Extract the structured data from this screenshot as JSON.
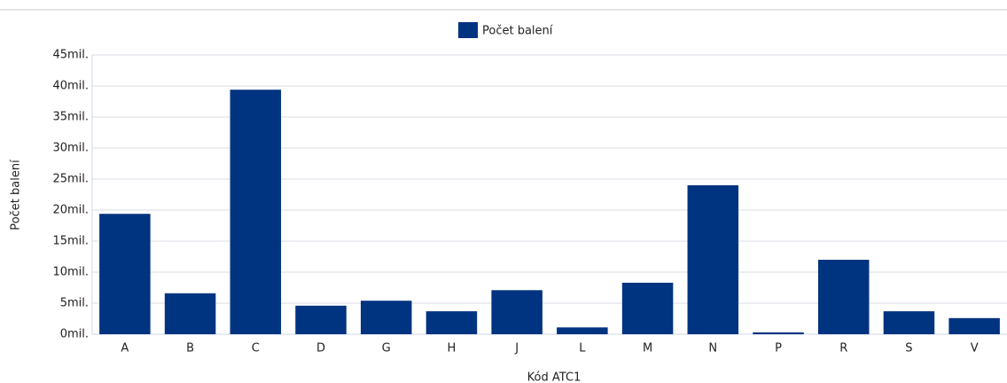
{
  "chart_data": {
    "type": "bar",
    "x_label": "Kód ATC1",
    "y_label": "Počet balení",
    "categories": [
      "A",
      "B",
      "C",
      "D",
      "G",
      "H",
      "J",
      "L",
      "M",
      "N",
      "P",
      "R",
      "S",
      "V"
    ],
    "series": [
      {
        "name": "Počet balení",
        "color": "#003380",
        "values": [
          19400000,
          6600000,
          39400000,
          4600000,
          5400000,
          3700000,
          7100000,
          1100000,
          8300000,
          24000000,
          300000,
          12000000,
          3700000,
          2600000
        ]
      }
    ],
    "ylim": [
      0,
      45000000
    ],
    "yticks": [
      {
        "value": 0,
        "label": "0mil."
      },
      {
        "value": 5000000,
        "label": "5mil."
      },
      {
        "value": 10000000,
        "label": "10mil."
      },
      {
        "value": 15000000,
        "label": "15mil."
      },
      {
        "value": 20000000,
        "label": "20mil."
      },
      {
        "value": 25000000,
        "label": "25mil."
      },
      {
        "value": 30000000,
        "label": "30mil."
      },
      {
        "value": 35000000,
        "label": "35mil."
      },
      {
        "value": 40000000,
        "label": "40mil."
      },
      {
        "value": 45000000,
        "label": "45mil."
      }
    ],
    "grid": true,
    "legend": "top"
  }
}
